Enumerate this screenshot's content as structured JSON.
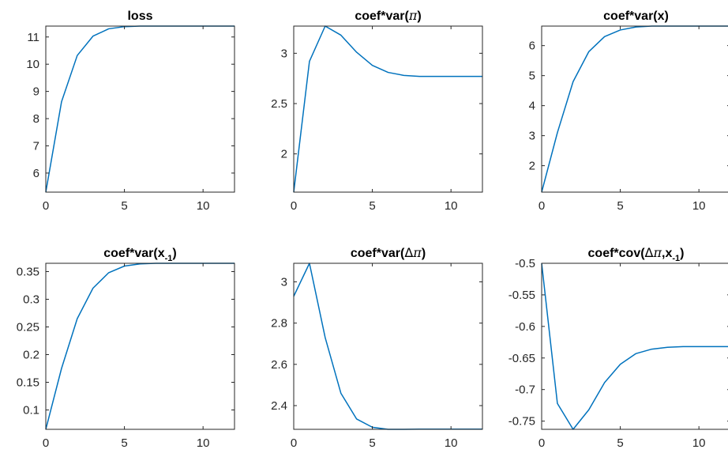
{
  "chart_data": [
    {
      "type": "line",
      "title_parts": [
        {
          "t": "loss",
          "s": "b"
        }
      ],
      "x": [
        0,
        1,
        2,
        3,
        4,
        5,
        6,
        7,
        8,
        9,
        10,
        11,
        12
      ],
      "y": [
        5.3,
        8.62,
        10.32,
        11.03,
        11.3,
        11.38,
        11.4,
        11.4,
        11.4,
        11.4,
        11.4,
        11.4,
        11.4
      ],
      "xlim": [
        0,
        12
      ],
      "ylim": [
        5.3,
        11.4
      ],
      "xticks": [
        0,
        5,
        10
      ],
      "yticks": [
        6,
        7,
        8,
        9,
        10,
        11
      ],
      "xtick_labels": [
        "0",
        "5",
        "10"
      ],
      "ytick_labels": [
        "6",
        "7",
        "8",
        "9",
        "10",
        "11"
      ],
      "grid": false
    },
    {
      "type": "line",
      "title_parts": [
        {
          "t": "coef*var(",
          "s": "b"
        },
        {
          "t": "π",
          "s": "greek"
        },
        {
          "t": ")",
          "s": "b"
        }
      ],
      "x": [
        0,
        1,
        2,
        3,
        4,
        5,
        6,
        7,
        8,
        9,
        10,
        11,
        12
      ],
      "y": [
        1.62,
        2.92,
        3.27,
        3.18,
        3.01,
        2.88,
        2.81,
        2.78,
        2.77,
        2.77,
        2.77,
        2.77,
        2.77
      ],
      "xlim": [
        0,
        12
      ],
      "ylim": [
        1.62,
        3.27
      ],
      "xticks": [
        0,
        5,
        10
      ],
      "yticks": [
        2,
        2.5,
        3
      ],
      "xtick_labels": [
        "0",
        "5",
        "10"
      ],
      "ytick_labels": [
        "2",
        "2.5",
        "3"
      ],
      "grid": false
    },
    {
      "type": "line",
      "title_parts": [
        {
          "t": "coef*var(x)",
          "s": "b"
        }
      ],
      "x": [
        0,
        1,
        2,
        3,
        4,
        5,
        6,
        7,
        8,
        9,
        10,
        11,
        12
      ],
      "y": [
        1.12,
        3.1,
        4.8,
        5.8,
        6.3,
        6.52,
        6.62,
        6.65,
        6.65,
        6.65,
        6.65,
        6.65,
        6.65
      ],
      "xlim": [
        0,
        12
      ],
      "ylim": [
        1.12,
        6.65
      ],
      "xticks": [
        0,
        5,
        10
      ],
      "yticks": [
        2,
        3,
        4,
        5,
        6
      ],
      "xtick_labels": [
        "0",
        "5",
        "10"
      ],
      "ytick_labels": [
        "2",
        "3",
        "4",
        "5",
        "6"
      ],
      "grid": false
    },
    {
      "type": "line",
      "title_parts": [
        {
          "t": "coef*var(x",
          "s": "b"
        },
        {
          "t": "-1",
          "s": "sub"
        },
        {
          "t": ")",
          "s": "b"
        }
      ],
      "x": [
        0,
        1,
        2,
        3,
        4,
        5,
        6,
        7,
        8,
        9,
        10,
        11,
        12
      ],
      "y": [
        0.065,
        0.175,
        0.265,
        0.32,
        0.348,
        0.36,
        0.364,
        0.365,
        0.365,
        0.365,
        0.365,
        0.365,
        0.365
      ],
      "xlim": [
        0,
        12
      ],
      "ylim": [
        0.065,
        0.365
      ],
      "xticks": [
        0,
        5,
        10
      ],
      "yticks": [
        0.1,
        0.15,
        0.2,
        0.25,
        0.3,
        0.35
      ],
      "xtick_labels": [
        "0",
        "5",
        "10"
      ],
      "ytick_labels": [
        "0.1",
        "0.15",
        "0.2",
        "0.25",
        "0.3",
        "0.35"
      ],
      "grid": false
    },
    {
      "type": "line",
      "title_parts": [
        {
          "t": "coef*var(",
          "s": "b"
        },
        {
          "t": "Δ",
          "s": "delta"
        },
        {
          "t": "π",
          "s": "greek"
        },
        {
          "t": ")",
          "s": "b"
        }
      ],
      "x": [
        0,
        1,
        2,
        3,
        4,
        5,
        6,
        7,
        8,
        9,
        10,
        11,
        12
      ],
      "y": [
        2.93,
        3.09,
        2.73,
        2.46,
        2.335,
        2.295,
        2.285,
        2.285,
        2.286,
        2.286,
        2.286,
        2.286,
        2.286
      ],
      "xlim": [
        0,
        12
      ],
      "ylim": [
        2.285,
        3.09
      ],
      "xticks": [
        0,
        5,
        10
      ],
      "yticks": [
        2.4,
        2.6,
        2.8,
        3
      ],
      "xtick_labels": [
        "0",
        "5",
        "10"
      ],
      "ytick_labels": [
        "2.4",
        "2.6",
        "2.8",
        "3"
      ],
      "grid": false
    },
    {
      "type": "line",
      "title_parts": [
        {
          "t": "coef*cov(",
          "s": "b"
        },
        {
          "t": "Δ",
          "s": "delta"
        },
        {
          "t": "π",
          "s": "greek"
        },
        {
          "t": ",x",
          "s": "b"
        },
        {
          "t": "-1",
          "s": "sub"
        },
        {
          "t": ")",
          "s": "b"
        }
      ],
      "x": [
        0,
        1,
        2,
        3,
        4,
        5,
        6,
        7,
        8,
        9,
        10,
        11,
        12
      ],
      "y": [
        -0.5,
        -0.722,
        -0.763,
        -0.732,
        -0.689,
        -0.66,
        -0.643,
        -0.636,
        -0.633,
        -0.632,
        -0.632,
        -0.632,
        -0.632
      ],
      "xlim": [
        0,
        12
      ],
      "ylim": [
        -0.763,
        -0.5
      ],
      "xticks": [
        0,
        5,
        10
      ],
      "yticks": [
        -0.75,
        -0.7,
        -0.65,
        -0.6,
        -0.55,
        -0.5
      ],
      "xtick_labels": [
        "0",
        "5",
        "10"
      ],
      "ytick_labels": [
        "-0.75",
        "-0.7",
        "-0.65",
        "-0.6",
        "-0.55",
        "-0.5"
      ],
      "grid": false
    }
  ],
  "line_color": "#0072BD",
  "axis_color": "#262626"
}
